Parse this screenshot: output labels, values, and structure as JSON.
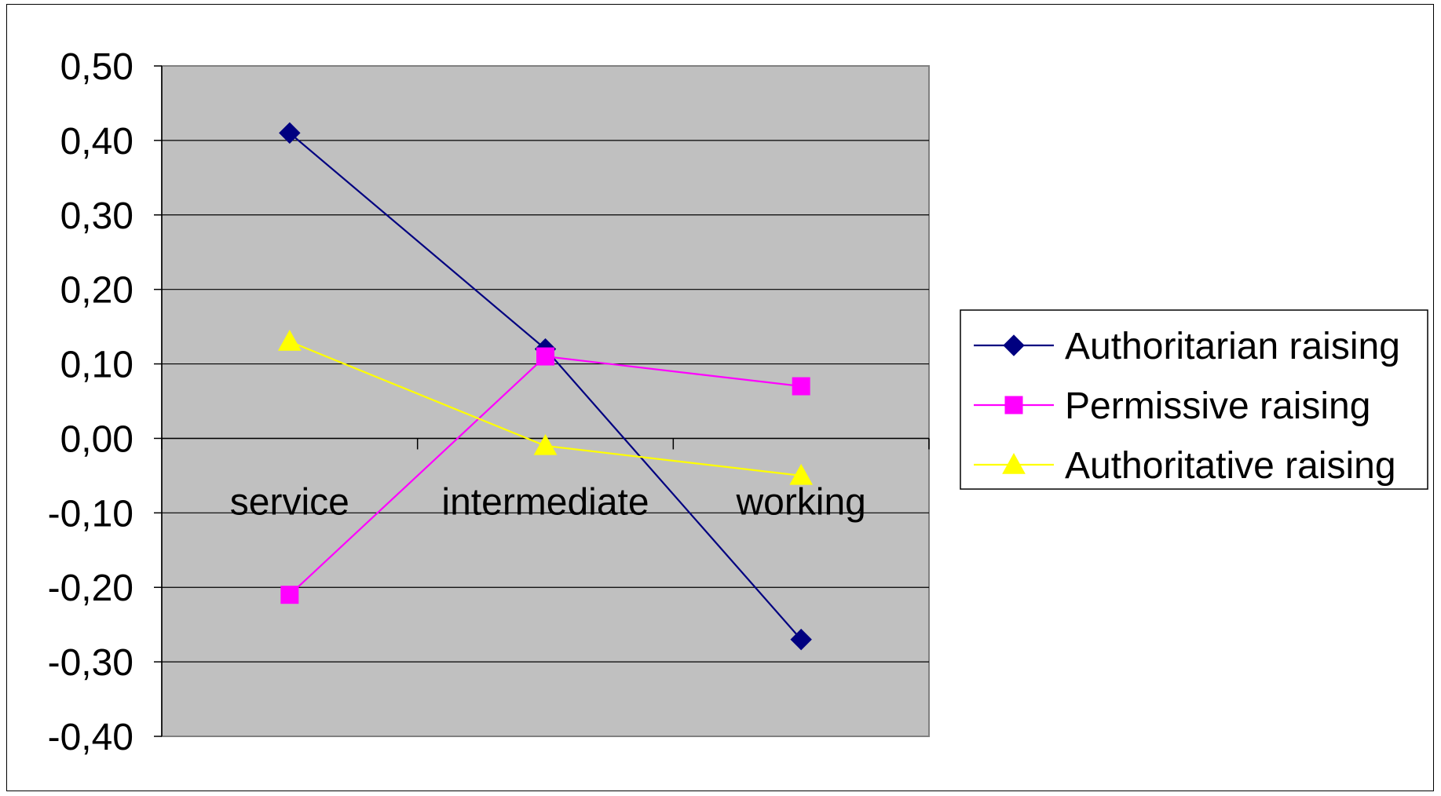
{
  "chart_data": {
    "type": "line",
    "categories": [
      "service",
      "intermediate",
      "working"
    ],
    "series": [
      {
        "name": "Authoritarian raising",
        "values": [
          0.41,
          0.12,
          -0.27
        ],
        "color": "#000080",
        "marker": "diamond"
      },
      {
        "name": "Permissive raising",
        "values": [
          -0.21,
          0.11,
          0.07
        ],
        "color": "#FF00FF",
        "marker": "square"
      },
      {
        "name": "Authoritative raising",
        "values": [
          0.13,
          -0.01,
          -0.05
        ],
        "color": "#FFFF00",
        "marker": "triangle"
      }
    ],
    "ylim": [
      -0.4,
      0.5
    ],
    "yticks": [
      0.5,
      0.4,
      0.3,
      0.2,
      0.1,
      0.0,
      -0.1,
      -0.2,
      -0.3,
      -0.4
    ],
    "ytick_labels": [
      "0,50",
      "0,40",
      "0,30",
      "0,20",
      "0,10",
      "0,00",
      "-0,10",
      "-0,20",
      "-0,30",
      "-0,40"
    ],
    "grid": true,
    "plot_background": "#C0C0C0",
    "legend_position": "right",
    "title": "",
    "xlabel": "",
    "ylabel": ""
  }
}
